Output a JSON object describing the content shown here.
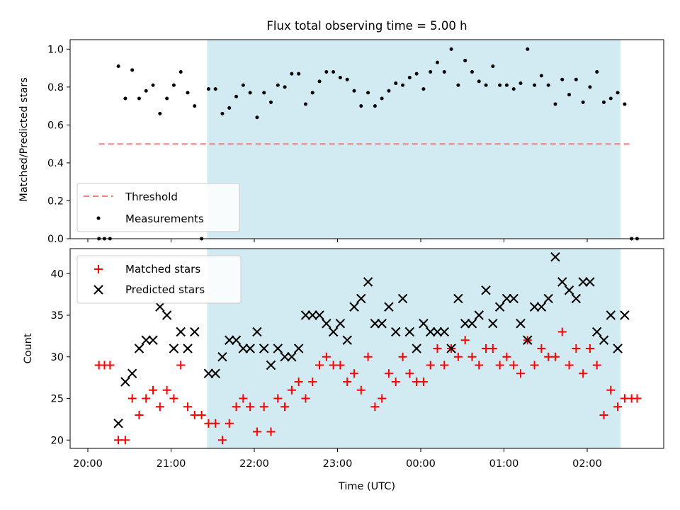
{
  "figure": {
    "title": "Flux total observing time = 5.00 h",
    "xlabel": "Time (UTC)",
    "x_ticks": [
      "20:00",
      "21:00",
      "22:00",
      "23:00",
      "00:00",
      "01:00",
      "02:00"
    ],
    "observing_window": {
      "start_min": 86,
      "end_min": 384,
      "color": "#add8e6"
    }
  },
  "chart_data": [
    {
      "type": "scatter",
      "ylabel": "Matched/Predicted stars",
      "ylim": [
        0,
        1.05
      ],
      "y_ticks": [
        "0.0",
        "0.2",
        "0.4",
        "0.6",
        "0.8",
        "1.0"
      ],
      "x_unit": "minutes after 20:00 UTC",
      "legend_position": "lower-left",
      "threshold": {
        "name": "Threshold",
        "value": 0.5,
        "x_range": [
          8,
          392
        ],
        "color": "#f08080"
      },
      "series": [
        {
          "name": "Measurements",
          "color": "#000000",
          "points": [
            [
              8,
              0
            ],
            [
              12,
              0
            ],
            [
              16,
              0
            ],
            [
              22,
              0.91
            ],
            [
              27,
              0.74
            ],
            [
              32,
              0.89
            ],
            [
              37,
              0.74
            ],
            [
              42,
              0.78
            ],
            [
              47,
              0.81
            ],
            [
              52,
              0.66
            ],
            [
              57,
              0.74
            ],
            [
              62,
              0.81
            ],
            [
              67,
              0.88
            ],
            [
              72,
              0.77
            ],
            [
              77,
              0.7
            ],
            [
              82,
              0
            ],
            [
              87,
              0.79
            ],
            [
              92,
              0.79
            ],
            [
              97,
              0.66
            ],
            [
              102,
              0.69
            ],
            [
              107,
              0.75
            ],
            [
              112,
              0.81
            ],
            [
              117,
              0.77
            ],
            [
              122,
              0.64
            ],
            [
              127,
              0.77
            ],
            [
              132,
              0.72
            ],
            [
              137,
              0.81
            ],
            [
              142,
              0.8
            ],
            [
              147,
              0.87
            ],
            [
              152,
              0.87
            ],
            [
              157,
              0.71
            ],
            [
              162,
              0.77
            ],
            [
              167,
              0.83
            ],
            [
              172,
              0.88
            ],
            [
              177,
              0.88
            ],
            [
              182,
              0.85
            ],
            [
              187,
              0.84
            ],
            [
              192,
              0.78
            ],
            [
              197,
              0.7
            ],
            [
              202,
              0.77
            ],
            [
              207,
              0.7
            ],
            [
              212,
              0.74
            ],
            [
              217,
              0.78
            ],
            [
              222,
              0.82
            ],
            [
              227,
              0.81
            ],
            [
              232,
              0.85
            ],
            [
              237,
              0.87
            ],
            [
              242,
              0.79
            ],
            [
              247,
              0.88
            ],
            [
              252,
              0.93
            ],
            [
              257,
              0.88
            ],
            [
              262,
              1.0
            ],
            [
              267,
              0.81
            ],
            [
              272,
              0.94
            ],
            [
              277,
              0.88
            ],
            [
              282,
              0.83
            ],
            [
              287,
              0.81
            ],
            [
              292,
              0.91
            ],
            [
              297,
              0.81
            ],
            [
              302,
              0.81
            ],
            [
              307,
              0.79
            ],
            [
              312,
              0.82
            ],
            [
              317,
              1.0
            ],
            [
              322,
              0.81
            ],
            [
              327,
              0.86
            ],
            [
              332,
              0.81
            ],
            [
              337,
              0.71
            ],
            [
              342,
              0.84
            ],
            [
              347,
              0.76
            ],
            [
              352,
              0.84
            ],
            [
              357,
              0.72
            ],
            [
              362,
              0.8
            ],
            [
              367,
              0.88
            ],
            [
              372,
              0.72
            ],
            [
              377,
              0.74
            ],
            [
              382,
              0.77
            ],
            [
              387,
              0.71
            ],
            [
              392,
              0
            ],
            [
              396,
              0
            ]
          ]
        }
      ]
    },
    {
      "type": "scatter",
      "ylabel": "Count",
      "ylim": [
        19,
        43
      ],
      "y_ticks": [
        "20",
        "25",
        "30",
        "35",
        "40"
      ],
      "x_unit": "minutes after 20:00 UTC",
      "legend_position": "top-left",
      "series": [
        {
          "name": "Matched stars",
          "color": "#ff0000",
          "marker": "+",
          "points": [
            [
              8,
              29
            ],
            [
              12,
              29
            ],
            [
              16,
              29
            ],
            [
              22,
              20
            ],
            [
              27,
              20
            ],
            [
              32,
              25
            ],
            [
              37,
              23
            ],
            [
              42,
              25
            ],
            [
              47,
              26
            ],
            [
              52,
              24
            ],
            [
              57,
              26
            ],
            [
              62,
              25
            ],
            [
              67,
              29
            ],
            [
              72,
              24
            ],
            [
              77,
              23
            ],
            [
              82,
              23
            ],
            [
              87,
              22
            ],
            [
              92,
              22
            ],
            [
              97,
              20
            ],
            [
              102,
              22
            ],
            [
              107,
              24
            ],
            [
              112,
              25
            ],
            [
              117,
              24
            ],
            [
              122,
              21
            ],
            [
              127,
              24
            ],
            [
              132,
              21
            ],
            [
              137,
              25
            ],
            [
              142,
              24
            ],
            [
              147,
              26
            ],
            [
              152,
              27
            ],
            [
              157,
              25
            ],
            [
              162,
              27
            ],
            [
              167,
              29
            ],
            [
              172,
              30
            ],
            [
              177,
              29
            ],
            [
              182,
              29
            ],
            [
              187,
              27
            ],
            [
              192,
              28
            ],
            [
              197,
              26
            ],
            [
              202,
              30
            ],
            [
              207,
              24
            ],
            [
              212,
              25
            ],
            [
              217,
              28
            ],
            [
              222,
              27
            ],
            [
              227,
              30
            ],
            [
              232,
              28
            ],
            [
              237,
              27
            ],
            [
              242,
              27
            ],
            [
              247,
              29
            ],
            [
              252,
              31
            ],
            [
              257,
              29
            ],
            [
              262,
              31
            ],
            [
              267,
              30
            ],
            [
              272,
              32
            ],
            [
              277,
              30
            ],
            [
              282,
              29
            ],
            [
              287,
              31
            ],
            [
              292,
              31
            ],
            [
              297,
              29
            ],
            [
              302,
              30
            ],
            [
              307,
              29
            ],
            [
              312,
              28
            ],
            [
              317,
              32
            ],
            [
              322,
              29
            ],
            [
              327,
              31
            ],
            [
              332,
              30
            ],
            [
              337,
              30
            ],
            [
              342,
              33
            ],
            [
              347,
              29
            ],
            [
              352,
              31
            ],
            [
              357,
              28
            ],
            [
              362,
              31
            ],
            [
              367,
              29
            ],
            [
              372,
              23
            ],
            [
              377,
              26
            ],
            [
              382,
              24
            ],
            [
              387,
              25
            ],
            [
              392,
              25
            ],
            [
              396,
              25
            ]
          ]
        },
        {
          "name": "Predicted stars",
          "color": "#000000",
          "marker": "x",
          "points": [
            [
              22,
              22
            ],
            [
              27,
              27
            ],
            [
              32,
              28
            ],
            [
              37,
              31
            ],
            [
              42,
              32
            ],
            [
              47,
              32
            ],
            [
              52,
              36
            ],
            [
              57,
              35
            ],
            [
              62,
              31
            ],
            [
              67,
              33
            ],
            [
              72,
              31
            ],
            [
              77,
              33
            ],
            [
              87,
              28
            ],
            [
              92,
              28
            ],
            [
              97,
              30
            ],
            [
              102,
              32
            ],
            [
              107,
              32
            ],
            [
              112,
              31
            ],
            [
              117,
              31
            ],
            [
              122,
              33
            ],
            [
              127,
              31
            ],
            [
              132,
              29
            ],
            [
              137,
              31
            ],
            [
              142,
              30
            ],
            [
              147,
              30
            ],
            [
              152,
              31
            ],
            [
              157,
              35
            ],
            [
              162,
              35
            ],
            [
              167,
              35
            ],
            [
              172,
              34
            ],
            [
              177,
              33
            ],
            [
              182,
              34
            ],
            [
              187,
              32
            ],
            [
              192,
              36
            ],
            [
              197,
              37
            ],
            [
              202,
              39
            ],
            [
              207,
              34
            ],
            [
              212,
              34
            ],
            [
              217,
              36
            ],
            [
              222,
              33
            ],
            [
              227,
              37
            ],
            [
              232,
              33
            ],
            [
              237,
              31
            ],
            [
              242,
              34
            ],
            [
              247,
              33
            ],
            [
              252,
              33
            ],
            [
              257,
              33
            ],
            [
              262,
              31
            ],
            [
              267,
              37
            ],
            [
              272,
              34
            ],
            [
              277,
              34
            ],
            [
              282,
              35
            ],
            [
              287,
              38
            ],
            [
              292,
              34
            ],
            [
              297,
              36
            ],
            [
              302,
              37
            ],
            [
              307,
              37
            ],
            [
              312,
              34
            ],
            [
              317,
              32
            ],
            [
              322,
              36
            ],
            [
              327,
              36
            ],
            [
              332,
              37
            ],
            [
              337,
              42
            ],
            [
              342,
              39
            ],
            [
              347,
              38
            ],
            [
              352,
              37
            ],
            [
              357,
              39
            ],
            [
              362,
              39
            ],
            [
              367,
              33
            ],
            [
              372,
              32
            ],
            [
              377,
              35
            ],
            [
              382,
              31
            ],
            [
              387,
              35
            ]
          ]
        }
      ]
    }
  ]
}
